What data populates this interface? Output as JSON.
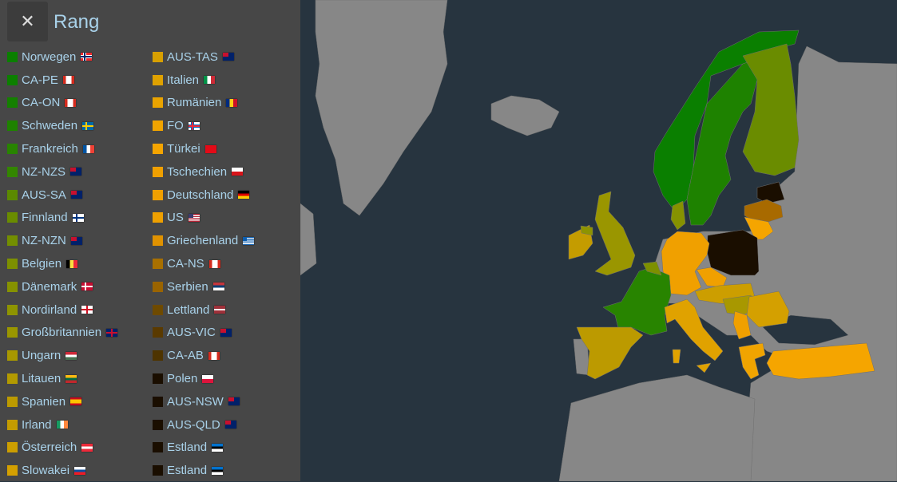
{
  "panel": {
    "title": "Rang",
    "close_icon": "close-icon"
  },
  "legend_left": [
    {
      "label": "Norwegen",
      "color": "#0a7f00",
      "flag": "no"
    },
    {
      "label": "CA-PE",
      "color": "#0c7f00",
      "flag": "ca"
    },
    {
      "label": "CA-ON",
      "color": "#148000",
      "flag": "ca"
    },
    {
      "label": "Schweden",
      "color": "#1e8200",
      "flag": "se"
    },
    {
      "label": "Frankreich",
      "color": "#288400",
      "flag": "fr"
    },
    {
      "label": "NZ-NZS",
      "color": "#338600",
      "flag": "nz"
    },
    {
      "label": "AUS-SA",
      "color": "#5b8a00",
      "flag": "au"
    },
    {
      "label": "Finnland",
      "color": "#6a8c00",
      "flag": "fi"
    },
    {
      "label": "NZ-NZN",
      "color": "#738e00",
      "flag": "nz"
    },
    {
      "label": "Belgien",
      "color": "#7d9000",
      "flag": "be"
    },
    {
      "label": "Dänemark",
      "color": "#869200",
      "flag": "dk"
    },
    {
      "label": "Nordirland",
      "color": "#8e9400",
      "flag": "en"
    },
    {
      "label": "Großbritannien",
      "color": "#9a9600",
      "flag": "gb"
    },
    {
      "label": "Ungarn",
      "color": "#a89800",
      "flag": "hu"
    },
    {
      "label": "Litauen",
      "color": "#b39a00",
      "flag": "lt"
    },
    {
      "label": "Spanien",
      "color": "#bc9a00",
      "flag": "es"
    },
    {
      "label": "Irland",
      "color": "#c49c00",
      "flag": "ie"
    },
    {
      "label": "Österreich",
      "color": "#cc9e00",
      "flag": "at"
    },
    {
      "label": "Slowakei",
      "color": "#d4a000",
      "flag": "sk"
    }
  ],
  "legend_right": [
    {
      "label": "AUS-TAS",
      "color": "#d8a000",
      "flag": "au"
    },
    {
      "label": "Italien",
      "color": "#e0a200",
      "flag": "it"
    },
    {
      "label": "Rumänien",
      "color": "#eaa400",
      "flag": "ro"
    },
    {
      "label": "FO",
      "color": "#f0a400",
      "flag": "fo"
    },
    {
      "label": "Türkei",
      "color": "#f5a500",
      "flag": "tr"
    },
    {
      "label": "Tschechien",
      "color": "#f0a000",
      "flag": "cz"
    },
    {
      "label": "Deutschland",
      "color": "#f0a000",
      "flag": "de"
    },
    {
      "label": "US",
      "color": "#eea000",
      "flag": "us"
    },
    {
      "label": "Griechenland",
      "color": "#e09200",
      "flag": "gr"
    },
    {
      "label": "CA-NS",
      "color": "#a87000",
      "flag": "ca"
    },
    {
      "label": "Serbien",
      "color": "#9a6400",
      "flag": "rs"
    },
    {
      "label": "Lettland",
      "color": "#6e4a00",
      "flag": "lv"
    },
    {
      "label": "AUS-VIC",
      "color": "#5a3a00",
      "flag": "au"
    },
    {
      "label": "CA-AB",
      "color": "#4e3400",
      "flag": "ca"
    },
    {
      "label": "Polen",
      "color": "#1a0e00",
      "flag": "pl"
    },
    {
      "label": "AUS-NSW",
      "color": "#1a0e00",
      "flag": "au"
    },
    {
      "label": "AUS-QLD",
      "color": "#1a0e00",
      "flag": "au"
    },
    {
      "label": "Estland",
      "color": "#1a0e00",
      "flag": "ee"
    },
    {
      "label": "Estland",
      "color": "#1a0e00",
      "flag": "ee"
    }
  ],
  "map": {
    "ocean": "#27343f",
    "land": "#878787"
  }
}
